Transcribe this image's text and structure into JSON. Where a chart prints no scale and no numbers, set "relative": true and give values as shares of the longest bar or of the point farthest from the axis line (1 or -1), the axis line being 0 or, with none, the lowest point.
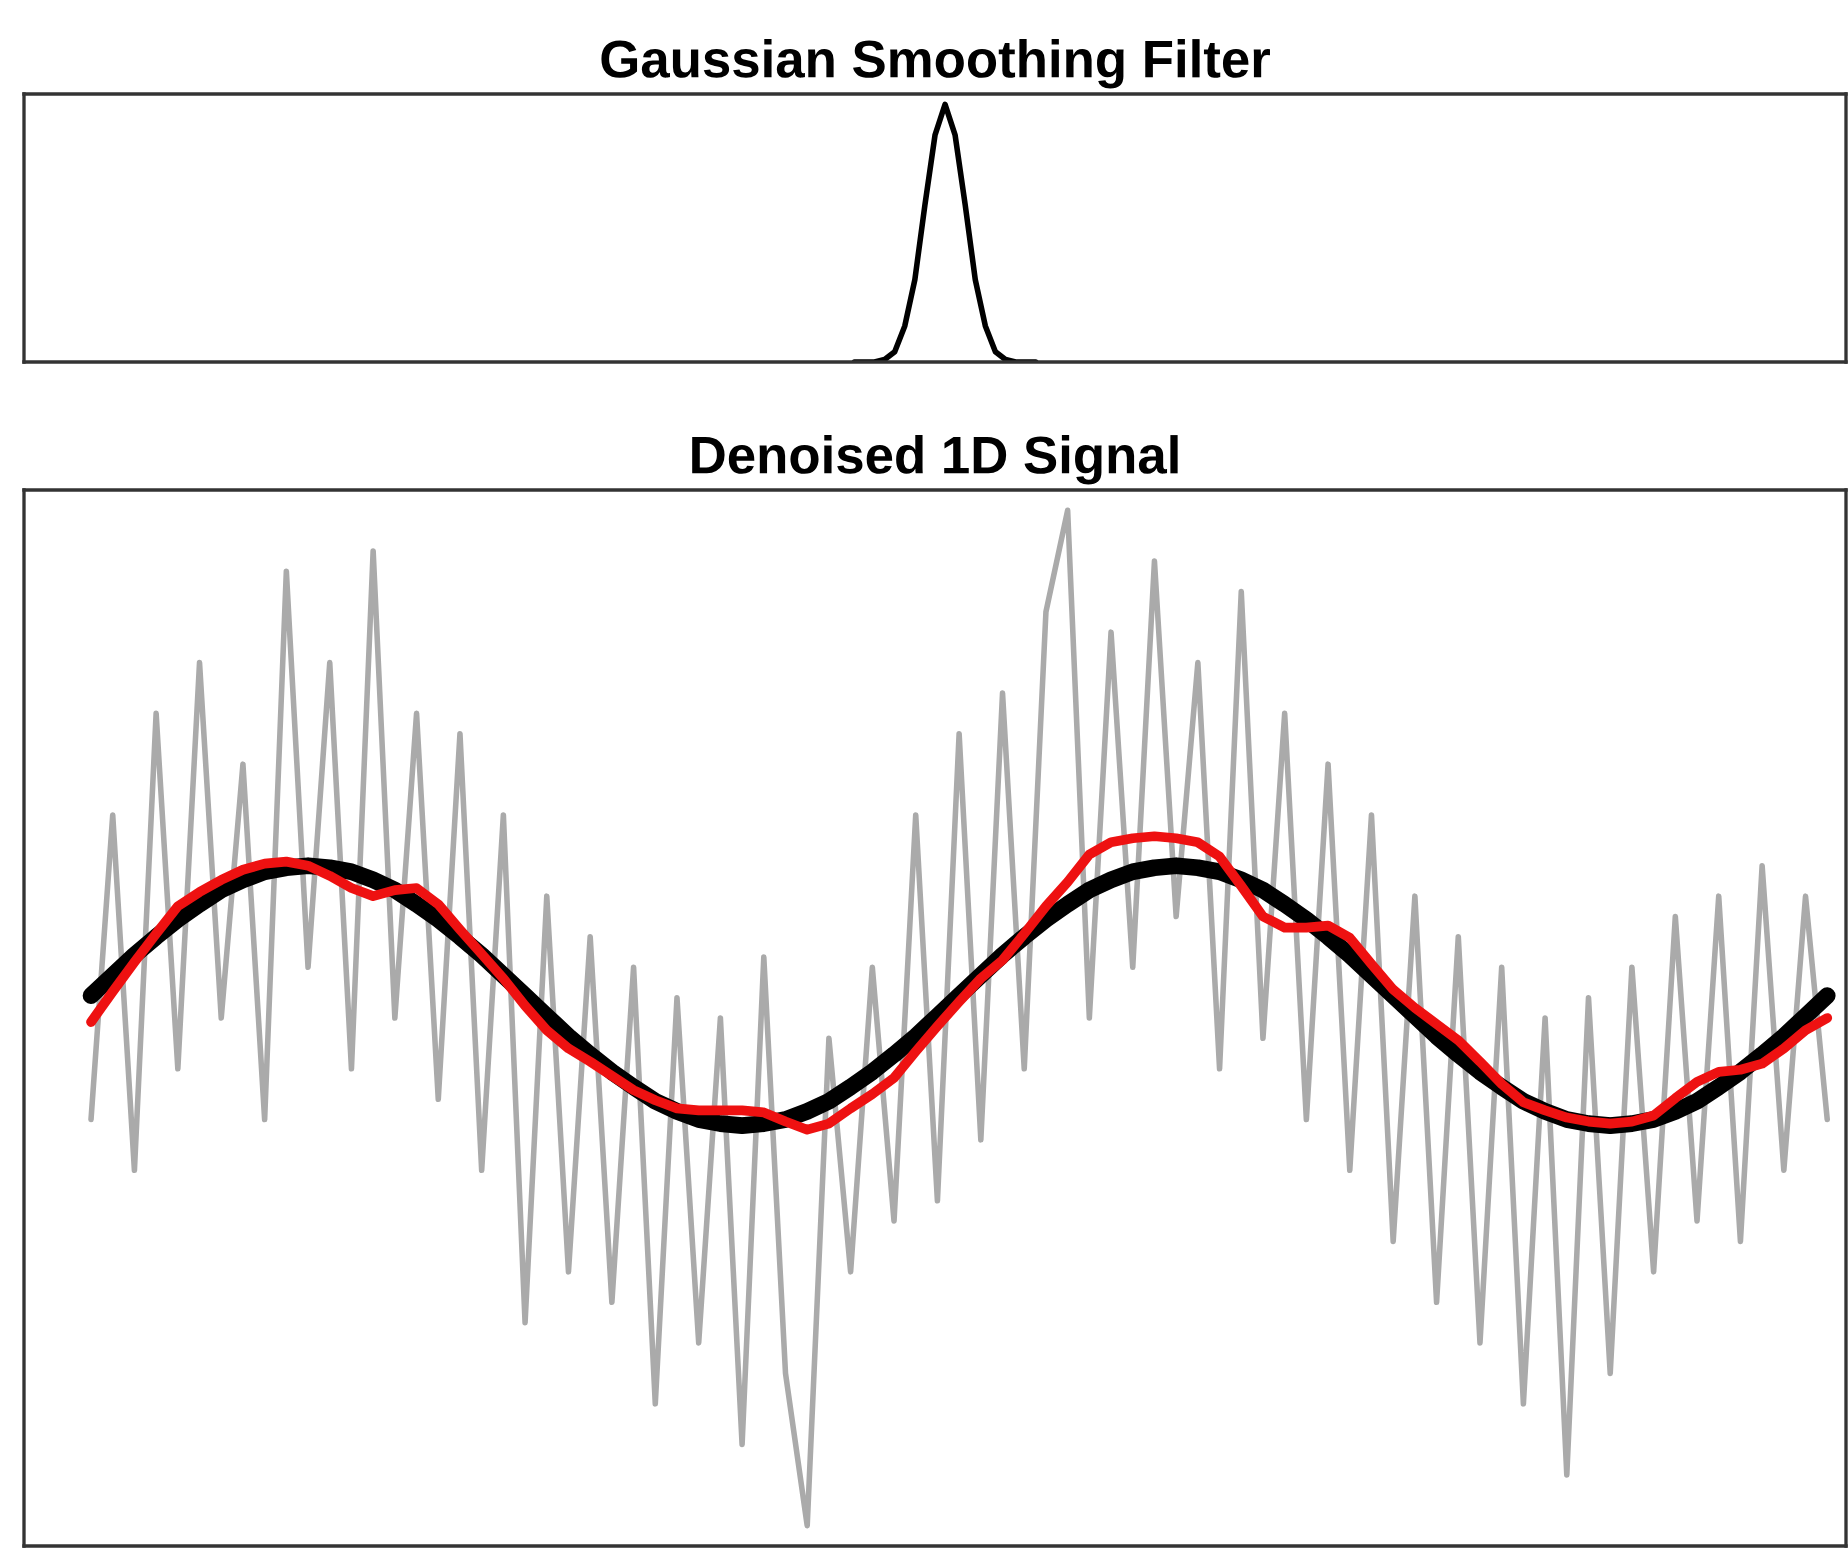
{
  "chart_data": [
    {
      "type": "line",
      "title": "Gaussian Smoothing Filter",
      "relative": true,
      "tick_labels": false,
      "categories": [
        null,
        null,
        null,
        null,
        null,
        null,
        null,
        null,
        null,
        null,
        null,
        null,
        null,
        null,
        null,
        null,
        null,
        null,
        null,
        null,
        null,
        null,
        null,
        null,
        null,
        null,
        null,
        null,
        null,
        null,
        null,
        null,
        null,
        null,
        null,
        null,
        null,
        null,
        null,
        null,
        null,
        null,
        null,
        null,
        null,
        null,
        null,
        null,
        null,
        null,
        null,
        null,
        null,
        null,
        null,
        null,
        null,
        null,
        null,
        null,
        null,
        null,
        null,
        null,
        null,
        null,
        null,
        null,
        null,
        null,
        null,
        null,
        null,
        null,
        null,
        null,
        null,
        null,
        null,
        null,
        null,
        null,
        null,
        null,
        null,
        null,
        null,
        null,
        null,
        null,
        null,
        null,
        null,
        null,
        null,
        null,
        null,
        null,
        null,
        null,
        null,
        null,
        null,
        null,
        null,
        null,
        null,
        null,
        null,
        null,
        null,
        null,
        null,
        null,
        null,
        null,
        null,
        null,
        null,
        null,
        null,
        null,
        null,
        null,
        null,
        null,
        null,
        null,
        null,
        null,
        null,
        null,
        null,
        null,
        null,
        null,
        null,
        null,
        null,
        null,
        null,
        null,
        null,
        null,
        null,
        null,
        null,
        null,
        null,
        null,
        null,
        null,
        null,
        null,
        null,
        null,
        null,
        null,
        null,
        null,
        null,
        null,
        null,
        null,
        null,
        null,
        null,
        null,
        null,
        null,
        null,
        null,
        null,
        null,
        null,
        null,
        null,
        null,
        null,
        null,
        null
      ],
      "series": [
        {
          "color": "#000000",
          "values": [
            null,
            null,
            null,
            null,
            null,
            null,
            null,
            null,
            null,
            null,
            null,
            null,
            null,
            null,
            null,
            null,
            null,
            null,
            null,
            null,
            null,
            null,
            null,
            null,
            null,
            null,
            null,
            null,
            null,
            null,
            null,
            null,
            null,
            null,
            null,
            null,
            null,
            null,
            null,
            null,
            null,
            null,
            null,
            null,
            null,
            null,
            null,
            null,
            null,
            null,
            null,
            null,
            null,
            null,
            null,
            null,
            null,
            null,
            null,
            null,
            null,
            null,
            null,
            null,
            null,
            null,
            null,
            null,
            null,
            null,
            null,
            null,
            null,
            null,
            null,
            null,
            null,
            null,
            null,
            null,
            null,
            null,
            0,
            0,
            0,
            0.01,
            0.04,
            0.14,
            0.32,
            0.61,
            0.88,
            1,
            0.88,
            0.61,
            0.32,
            0.14,
            0.04,
            0.01,
            0,
            0,
            0,
            null,
            null,
            null,
            null,
            null,
            null,
            null,
            null,
            null,
            null,
            null,
            null,
            null,
            null,
            null,
            null,
            null,
            null,
            null,
            null,
            null,
            null,
            null,
            null,
            null,
            null,
            null,
            null,
            null,
            null,
            null,
            null,
            null,
            null,
            null,
            null,
            null,
            null,
            null,
            null,
            null,
            null,
            null,
            null,
            null,
            null,
            null,
            null,
            null,
            null,
            null,
            null,
            null,
            null,
            null,
            null,
            null,
            null,
            null,
            null,
            null,
            null,
            null,
            null,
            null,
            null,
            null,
            null,
            null,
            null,
            null,
            null,
            null,
            null,
            null,
            null,
            null,
            null,
            null,
            null
          ]
        }
      ]
    },
    {
      "type": "line",
      "title": "Denoised 1D Signal",
      "relative": true,
      "tick_labels": false,
      "categories": [
        null,
        null,
        null,
        null,
        null,
        null,
        null,
        null,
        null,
        null,
        null,
        null,
        null,
        null,
        null,
        null,
        null,
        null,
        null,
        null,
        null,
        null,
        null,
        null,
        null,
        null,
        null,
        null,
        null,
        null,
        null,
        null,
        null,
        null,
        null,
        null,
        null,
        null,
        null,
        null,
        null,
        null,
        null,
        null,
        null,
        null,
        null,
        null,
        null,
        null,
        null,
        null,
        null,
        null,
        null,
        null,
        null,
        null,
        null,
        null,
        null,
        null,
        null,
        null,
        null,
        null,
        null,
        null,
        null,
        null,
        null,
        null,
        null,
        null,
        null,
        null,
        null,
        null,
        null,
        null,
        null
      ],
      "series": [
        {
          "color": "#aaaaaa",
          "values": [
            0.4,
            0.7,
            0.35,
            0.8,
            0.45,
            0.85,
            0.5,
            0.75,
            0.4,
            0.94,
            0.55,
            0.85,
            0.45,
            0.96,
            0.5,
            0.8,
            0.42,
            0.78,
            0.35,
            0.7,
            0.2,
            0.62,
            0.25,
            0.58,
            0.22,
            0.55,
            0.12,
            0.52,
            0.18,
            0.5,
            0.08,
            0.56,
            0.15,
            0.0,
            0.48,
            0.25,
            0.55,
            0.3,
            0.7,
            0.32,
            0.78,
            0.38,
            0.82,
            0.45,
            0.9,
            1.0,
            0.5,
            0.88,
            0.55,
            0.95,
            0.6,
            0.85,
            0.45,
            0.92,
            0.48,
            0.8,
            0.4,
            0.75,
            0.35,
            0.7,
            0.28,
            0.62,
            0.22,
            0.58,
            0.18,
            0.55,
            0.12,
            0.5,
            0.05,
            0.52,
            0.15,
            0.55,
            0.25,
            0.6,
            0.3,
            0.62,
            0.28,
            0.65,
            0.35,
            0.62,
            0.4
          ]
        },
        {
          "color": "#000000",
          "values": [
            0.522,
            0.542,
            0.562,
            0.58,
            0.597,
            0.612,
            0.626,
            0.636,
            0.644,
            0.648,
            0.65,
            0.648,
            0.644,
            0.636,
            0.626,
            0.612,
            0.597,
            0.58,
            0.562,
            0.542,
            0.522,
            0.502,
            0.482,
            0.464,
            0.447,
            0.432,
            0.418,
            0.408,
            0.4,
            0.396,
            0.394,
            0.396,
            0.4,
            0.408,
            0.418,
            0.432,
            0.447,
            0.464,
            0.482,
            0.502,
            0.522,
            0.542,
            0.562,
            0.58,
            0.597,
            0.612,
            0.626,
            0.636,
            0.644,
            0.648,
            0.65,
            0.648,
            0.644,
            0.636,
            0.626,
            0.612,
            0.597,
            0.58,
            0.562,
            0.542,
            0.522,
            0.502,
            0.482,
            0.464,
            0.447,
            0.432,
            0.418,
            0.408,
            0.4,
            0.396,
            0.394,
            0.396,
            0.4,
            0.408,
            0.418,
            0.432,
            0.447,
            0.464,
            0.482,
            0.502,
            0.522
          ]
        },
        {
          "color": "#ee1111",
          "values": [
            0.496,
            0.526,
            0.555,
            0.583,
            0.61,
            0.624,
            0.636,
            0.646,
            0.652,
            0.654,
            0.65,
            0.64,
            0.628,
            0.62,
            0.626,
            0.628,
            0.612,
            0.587,
            0.563,
            0.539,
            0.512,
            0.488,
            0.47,
            0.457,
            0.443,
            0.429,
            0.419,
            0.411,
            0.409,
            0.409,
            0.409,
            0.407,
            0.398,
            0.39,
            0.396,
            0.411,
            0.425,
            0.441,
            0.467,
            0.492,
            0.516,
            0.539,
            0.557,
            0.583,
            0.61,
            0.634,
            0.661,
            0.673,
            0.677,
            0.679,
            0.677,
            0.673,
            0.659,
            0.63,
            0.6,
            0.589,
            0.589,
            0.591,
            0.579,
            0.553,
            0.528,
            0.51,
            0.494,
            0.478,
            0.457,
            0.435,
            0.417,
            0.409,
            0.402,
            0.398,
            0.396,
            0.398,
            0.404,
            0.421,
            0.437,
            0.447,
            0.449,
            0.455,
            0.47,
            0.488,
            0.5
          ]
        }
      ]
    }
  ]
}
